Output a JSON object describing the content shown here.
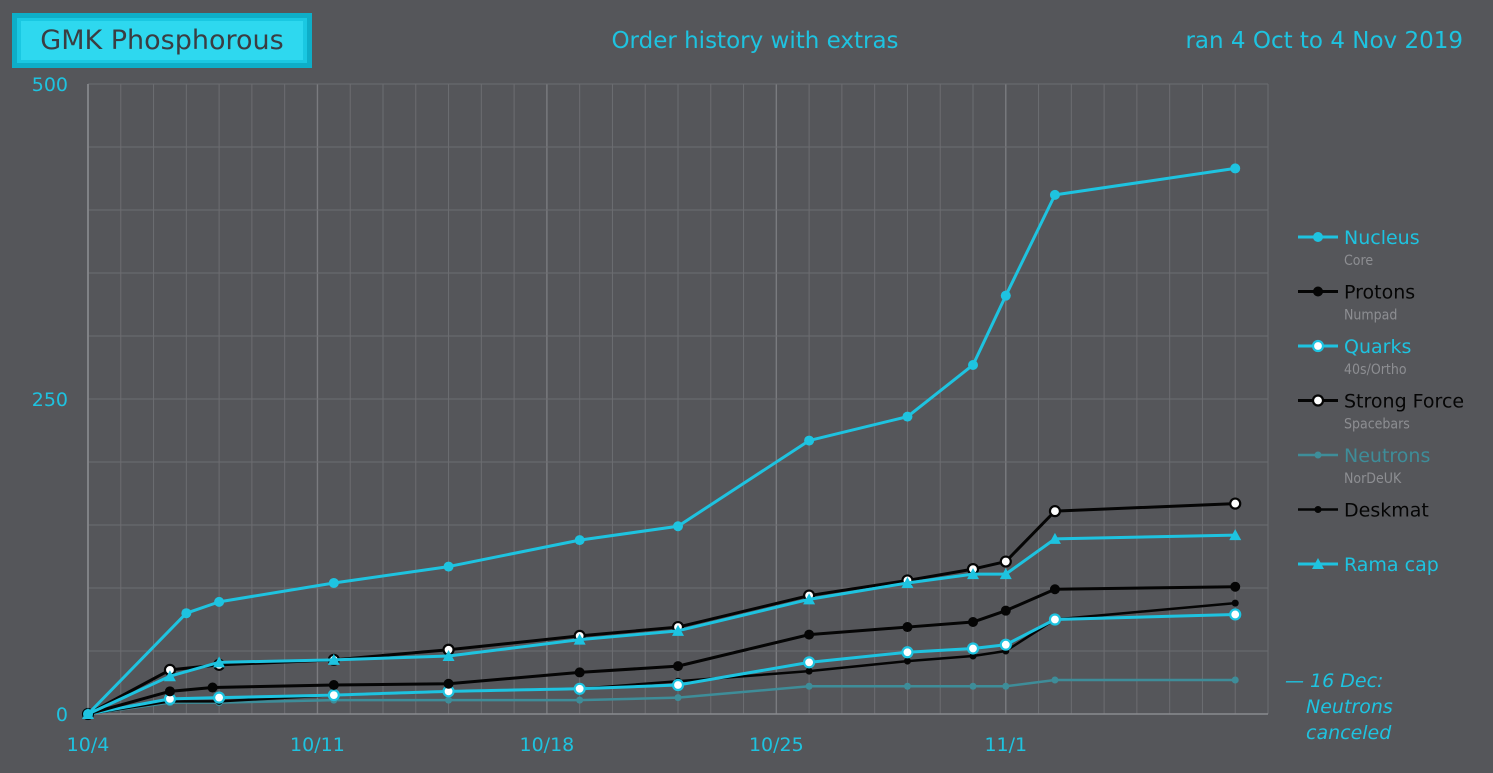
{
  "header": {
    "product": "GMK Phosphorous",
    "date_range": "ran 4 Oct to 4 Nov 2019"
  },
  "annotation": {
    "line1": "— 16 Dec:",
    "line2": "Neutrons",
    "line3": "canceled"
  },
  "colors": {
    "background": "#55565a",
    "cyan": "#1ec3e0",
    "black": "#050505",
    "dim_teal": "#3e8d99",
    "grid": "#6c6d71",
    "grid_major": "#7a7b7f",
    "sub_label": "#8d8e92"
  },
  "chart_data": {
    "type": "line",
    "title": "Order history with extras",
    "xlabel": "",
    "ylabel": "",
    "x_range": [
      "2019-10-04",
      "2019-11-09"
    ],
    "ylim": [
      0,
      500
    ],
    "yticks": [
      0,
      250,
      500
    ],
    "xticks": [
      {
        "date": "2019-10-04",
        "label": "10/4"
      },
      {
        "date": "2019-10-11",
        "label": "10/11"
      },
      {
        "date": "2019-10-18",
        "label": "10/18"
      },
      {
        "date": "2019-10-25",
        "label": "10/25"
      },
      {
        "date": "2019-11-01",
        "label": "11/1"
      }
    ],
    "grid": true,
    "legend_position": "right",
    "series": [
      {
        "name": "Nucleus",
        "sub": "Core",
        "color": "#1ec3e0",
        "marker": "filled-circle",
        "width": 3,
        "points": [
          [
            "2019-10-04",
            0
          ],
          [
            "2019-10-07",
            80
          ],
          [
            "2019-10-08",
            89
          ],
          [
            "2019-10-11.5",
            104
          ],
          [
            "2019-10-15",
            117
          ],
          [
            "2019-10-19",
            138
          ],
          [
            "2019-10-22",
            149
          ],
          [
            "2019-10-26",
            217
          ],
          [
            "2019-10-29",
            236
          ],
          [
            "2019-10-31",
            277
          ],
          [
            "2019-11-01",
            332
          ],
          [
            "2019-11-02.5",
            412
          ],
          [
            "2019-11-08",
            433
          ]
        ]
      },
      {
        "name": "Protons",
        "sub": "Numpad",
        "color": "#050505",
        "marker": "filled-circle",
        "width": 3,
        "points": [
          [
            "2019-10-04",
            0
          ],
          [
            "2019-10-06.5",
            18
          ],
          [
            "2019-10-07.8",
            21
          ],
          [
            "2019-10-11.5",
            23
          ],
          [
            "2019-10-15",
            24
          ],
          [
            "2019-10-19",
            33
          ],
          [
            "2019-10-22",
            38
          ],
          [
            "2019-10-26",
            63
          ],
          [
            "2019-10-29",
            69
          ],
          [
            "2019-10-31",
            73
          ],
          [
            "2019-11-01",
            82
          ],
          [
            "2019-11-02.5",
            99
          ],
          [
            "2019-11-08",
            101
          ]
        ]
      },
      {
        "name": "Quarks",
        "sub": "40s/Ortho",
        "color": "#1ec3e0",
        "marker": "hollow-circle",
        "width": 3,
        "points": [
          [
            "2019-10-04",
            0
          ],
          [
            "2019-10-06.5",
            12
          ],
          [
            "2019-10-08",
            13
          ],
          [
            "2019-10-11.5",
            15
          ],
          [
            "2019-10-15",
            18
          ],
          [
            "2019-10-19",
            20
          ],
          [
            "2019-10-22",
            23
          ],
          [
            "2019-10-26",
            41
          ],
          [
            "2019-10-29",
            49
          ],
          [
            "2019-10-31",
            52
          ],
          [
            "2019-11-01",
            55
          ],
          [
            "2019-11-02.5",
            75
          ],
          [
            "2019-11-08",
            79
          ]
        ]
      },
      {
        "name": "Strong Force",
        "sub": "Spacebars",
        "color": "#050505",
        "marker": "hollow-circle",
        "width": 3,
        "points": [
          [
            "2019-10-04",
            0
          ],
          [
            "2019-10-06.5",
            35
          ],
          [
            "2019-10-08",
            39
          ],
          [
            "2019-10-11.5",
            43
          ],
          [
            "2019-10-15",
            51
          ],
          [
            "2019-10-19",
            62
          ],
          [
            "2019-10-22",
            69
          ],
          [
            "2019-10-26",
            94
          ],
          [
            "2019-10-29",
            106
          ],
          [
            "2019-10-31",
            115
          ],
          [
            "2019-11-01",
            121
          ],
          [
            "2019-11-02.5",
            161
          ],
          [
            "2019-11-08",
            167
          ]
        ]
      },
      {
        "name": "Neutrons",
        "sub": "NorDeUK",
        "color": "#3e8d99",
        "marker": "small-filled-circle",
        "width": 2.5,
        "points": [
          [
            "2019-10-04",
            0
          ],
          [
            "2019-10-06.5",
            9
          ],
          [
            "2019-10-08",
            9
          ],
          [
            "2019-10-11.5",
            11
          ],
          [
            "2019-10-15",
            11
          ],
          [
            "2019-10-19",
            11
          ],
          [
            "2019-10-22",
            13
          ],
          [
            "2019-10-26",
            22
          ],
          [
            "2019-10-29",
            22
          ],
          [
            "2019-10-31",
            22
          ],
          [
            "2019-11-01",
            22
          ],
          [
            "2019-11-02.5",
            27
          ],
          [
            "2019-11-08",
            27
          ]
        ]
      },
      {
        "name": "Deskmat",
        "sub": "",
        "color": "#050505",
        "marker": "small-filled-circle",
        "width": 2.5,
        "points": [
          [
            "2019-10-04",
            0
          ],
          [
            "2019-10-06.5",
            10
          ],
          [
            "2019-10-08",
            10
          ],
          [
            "2019-10-11.5",
            15
          ],
          [
            "2019-10-15",
            18
          ],
          [
            "2019-10-19",
            20
          ],
          [
            "2019-10-22",
            26
          ],
          [
            "2019-10-26",
            34
          ],
          [
            "2019-10-29",
            42
          ],
          [
            "2019-10-31",
            46
          ],
          [
            "2019-11-01",
            50
          ],
          [
            "2019-11-02.5",
            75
          ],
          [
            "2019-11-08",
            88
          ]
        ]
      },
      {
        "name": "Rama cap",
        "sub": "",
        "color": "#1ec3e0",
        "marker": "triangle",
        "width": 3,
        "points": [
          [
            "2019-10-04",
            0
          ],
          [
            "2019-10-06.5",
            30
          ],
          [
            "2019-10-08",
            41
          ],
          [
            "2019-10-11.5",
            43
          ],
          [
            "2019-10-15",
            46
          ],
          [
            "2019-10-19",
            59
          ],
          [
            "2019-10-22",
            66
          ],
          [
            "2019-10-26",
            91
          ],
          [
            "2019-10-29",
            104
          ],
          [
            "2019-10-31",
            111
          ],
          [
            "2019-11-01",
            111
          ],
          [
            "2019-11-02.5",
            139
          ],
          [
            "2019-11-08",
            142
          ]
        ]
      }
    ]
  }
}
